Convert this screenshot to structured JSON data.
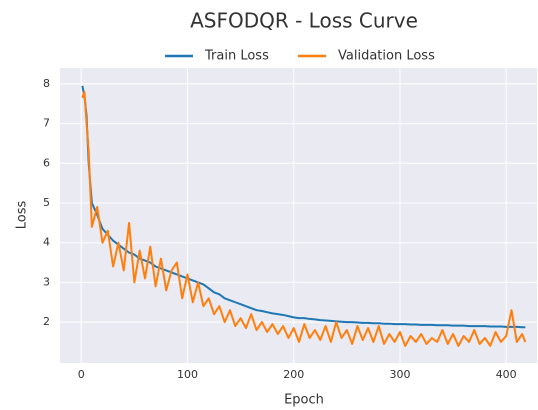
{
  "chart_data": {
    "type": "line",
    "title": "ASFODQR - Loss Curve",
    "x_label": "Epoch",
    "y_label": "Loss",
    "legend": "top",
    "grid": true,
    "xlim": [
      -20,
      429
    ],
    "ylim": [
      0.97,
      8.4
    ],
    "xticks": [
      0,
      100,
      200,
      300,
      400
    ],
    "yticks": [
      2,
      3,
      4,
      5,
      6,
      7,
      8
    ],
    "x": [
      1,
      3,
      5,
      7,
      10,
      15,
      20,
      25,
      30,
      35,
      40,
      45,
      50,
      55,
      60,
      65,
      70,
      75,
      80,
      85,
      90,
      95,
      100,
      105,
      110,
      115,
      120,
      125,
      130,
      135,
      140,
      145,
      150,
      155,
      160,
      165,
      170,
      175,
      180,
      185,
      190,
      195,
      200,
      205,
      210,
      215,
      220,
      225,
      230,
      235,
      240,
      245,
      250,
      255,
      260,
      265,
      270,
      275,
      280,
      285,
      290,
      295,
      300,
      305,
      310,
      315,
      320,
      325,
      330,
      335,
      340,
      345,
      350,
      355,
      360,
      365,
      370,
      375,
      380,
      385,
      390,
      395,
      400,
      405,
      410,
      415,
      418
    ],
    "series": [
      {
        "name": "Train Loss",
        "color": "#1f77b4",
        "values": [
          7.95,
          7.7,
          7.2,
          6.0,
          5.0,
          4.7,
          4.35,
          4.2,
          4.05,
          3.95,
          3.85,
          3.75,
          3.7,
          3.6,
          3.55,
          3.5,
          3.4,
          3.35,
          3.3,
          3.25,
          3.2,
          3.15,
          3.1,
          3.05,
          3.0,
          2.95,
          2.85,
          2.75,
          2.7,
          2.6,
          2.55,
          2.5,
          2.45,
          2.4,
          2.35,
          2.3,
          2.28,
          2.25,
          2.22,
          2.2,
          2.18,
          2.15,
          2.12,
          2.1,
          2.1,
          2.08,
          2.07,
          2.05,
          2.04,
          2.03,
          2.02,
          2.01,
          2.0,
          2.0,
          1.99,
          1.98,
          1.98,
          1.97,
          1.97,
          1.96,
          1.96,
          1.95,
          1.95,
          1.95,
          1.94,
          1.94,
          1.93,
          1.93,
          1.93,
          1.92,
          1.92,
          1.92,
          1.91,
          1.91,
          1.91,
          1.9,
          1.9,
          1.9,
          1.9,
          1.89,
          1.89,
          1.89,
          1.88,
          1.88,
          1.88,
          1.87,
          1.87
        ]
      },
      {
        "name": "Validation Loss",
        "color": "#ff7f0e",
        "values": [
          7.65,
          7.8,
          7.0,
          6.3,
          4.4,
          4.9,
          4.0,
          4.3,
          3.4,
          4.0,
          3.3,
          4.5,
          3.0,
          3.8,
          3.1,
          3.9,
          2.9,
          3.6,
          2.8,
          3.3,
          3.5,
          2.6,
          3.2,
          2.5,
          3.0,
          2.4,
          2.6,
          2.2,
          2.4,
          2.0,
          2.3,
          1.9,
          2.1,
          1.85,
          2.2,
          1.8,
          2.0,
          1.75,
          1.95,
          1.7,
          1.9,
          1.6,
          1.85,
          1.5,
          1.95,
          1.6,
          1.8,
          1.55,
          1.9,
          1.5,
          2.0,
          1.6,
          1.8,
          1.45,
          1.9,
          1.55,
          1.85,
          1.5,
          1.9,
          1.45,
          1.7,
          1.5,
          1.75,
          1.4,
          1.65,
          1.5,
          1.7,
          1.45,
          1.6,
          1.5,
          1.8,
          1.45,
          1.7,
          1.4,
          1.65,
          1.5,
          1.8,
          1.45,
          1.6,
          1.4,
          1.75,
          1.5,
          1.65,
          2.3,
          1.5,
          1.7,
          1.5
        ]
      }
    ]
  }
}
